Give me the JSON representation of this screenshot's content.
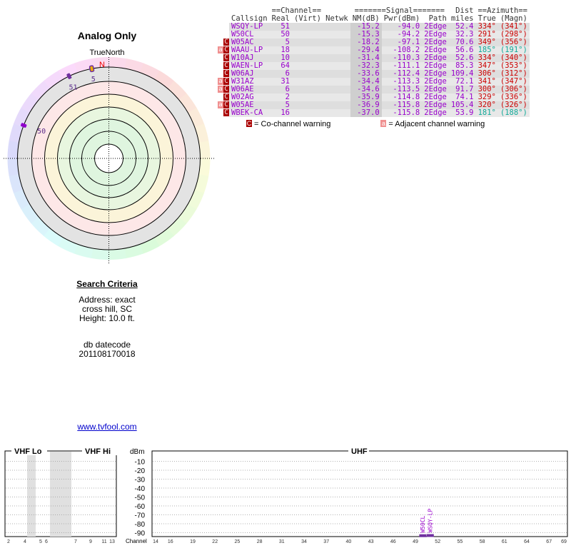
{
  "radar": {
    "title": "Analog Only",
    "north_label": "TrueNorth",
    "n_letter": "N",
    "markers": [
      {
        "label": "5",
        "true_deg": 349,
        "color": "#f0b000"
      },
      {
        "label": "51",
        "true_deg": 334,
        "color": "#7030a0"
      },
      {
        "label": "50",
        "true_deg": 291,
        "color": "#9000cc"
      }
    ]
  },
  "search": {
    "title": "Search Criteria",
    "address": "Address: exact",
    "city": "cross hill, SC",
    "height": "Height: 10.0 ft.",
    "db_label": "db datecode",
    "db_code": "201108170018"
  },
  "link": "www.tvfool.com",
  "table": {
    "group_channel": "==Channel==",
    "group_signal": "=======Signal=======",
    "group_dist": "Dist",
    "group_azimuth": "==Azimuth==",
    "headers": [
      "Callsign",
      "Real",
      "(Virt)",
      "Netwk",
      "NM(dB)",
      "Pwr(dBm)",
      "Path",
      "miles",
      "True",
      "(Magn)"
    ],
    "rows": [
      {
        "flag": "",
        "callsign": "WSQY-LP",
        "real": "51",
        "virt": "",
        "netwk": "",
        "nm": "-15.2",
        "pwr": "-94.0",
        "path": "2Edge",
        "miles": "52.4",
        "true": "334°",
        "magn": "(341°)",
        "az_color": "#c00"
      },
      {
        "flag": "",
        "callsign": "W50CL",
        "real": "50",
        "virt": "",
        "netwk": "",
        "nm": "-15.3",
        "pwr": "-94.2",
        "path": "2Edge",
        "miles": "32.3",
        "true": "291°",
        "magn": "(298°)",
        "az_color": "#c00"
      },
      {
        "flag": "C",
        "callsign": "W05AC",
        "real": "5",
        "virt": "",
        "netwk": "",
        "nm": "-18.2",
        "pwr": "-97.1",
        "path": "2Edge",
        "miles": "70.6",
        "true": "349°",
        "magn": "(356°)",
        "az_color": "#c00"
      },
      {
        "flag": "AC",
        "callsign": "WAAU-LP",
        "real": "18",
        "virt": "",
        "netwk": "",
        "nm": "-29.4",
        "pwr": "-108.2",
        "path": "2Edge",
        "miles": "56.6",
        "true": "185°",
        "magn": "(191°)",
        "az_color": "#1a9"
      },
      {
        "flag": "C",
        "callsign": "W10AJ",
        "real": "10",
        "virt": "",
        "netwk": "",
        "nm": "-31.4",
        "pwr": "-110.3",
        "path": "2Edge",
        "miles": "52.6",
        "true": "334°",
        "magn": "(340°)",
        "az_color": "#c00"
      },
      {
        "flag": "C",
        "callsign": "WAEN-LP",
        "real": "64",
        "virt": "",
        "netwk": "",
        "nm": "-32.3",
        "pwr": "-111.1",
        "path": "2Edge",
        "miles": "85.3",
        "true": "347°",
        "magn": "(353°)",
        "az_color": "#c00"
      },
      {
        "flag": "C",
        "callsign": "W06AJ",
        "real": "6",
        "virt": "",
        "netwk": "",
        "nm": "-33.6",
        "pwr": "-112.4",
        "path": "2Edge",
        "miles": "109.4",
        "true": "306°",
        "magn": "(312°)",
        "az_color": "#c00"
      },
      {
        "flag": "AC",
        "callsign": "W31AZ",
        "real": "31",
        "virt": "",
        "netwk": "",
        "nm": "-34.4",
        "pwr": "-113.3",
        "path": "2Edge",
        "miles": "72.1",
        "true": "341°",
        "magn": "(347°)",
        "az_color": "#c00"
      },
      {
        "flag": "AC",
        "callsign": "W06AE",
        "real": "6",
        "virt": "",
        "netwk": "",
        "nm": "-34.6",
        "pwr": "-113.5",
        "path": "2Edge",
        "miles": "91.7",
        "true": "300°",
        "magn": "(306°)",
        "az_color": "#c00"
      },
      {
        "flag": "C",
        "callsign": "W02AG",
        "real": "2",
        "virt": "",
        "netwk": "",
        "nm": "-35.9",
        "pwr": "-114.8",
        "path": "2Edge",
        "miles": "74.1",
        "true": "329°",
        "magn": "(336°)",
        "az_color": "#c00"
      },
      {
        "flag": "AC",
        "callsign": "W05AE",
        "real": "5",
        "virt": "",
        "netwk": "",
        "nm": "-36.9",
        "pwr": "-115.8",
        "path": "2Edge",
        "miles": "105.4",
        "true": "320°",
        "magn": "(326°)",
        "az_color": "#c00"
      },
      {
        "flag": "C",
        "callsign": "WBEK-CA",
        "real": "16",
        "virt": "",
        "netwk": "",
        "nm": "-37.0",
        "pwr": "-115.8",
        "path": "2Edge",
        "miles": "53.9",
        "true": "181°",
        "magn": "(188°)",
        "az_color": "#1a9"
      }
    ],
    "legend_co_badge": "C",
    "legend_co": " = Co-channel warning",
    "legend_adj_badge": "a",
    "legend_adj": " = Adjacent channel warning"
  },
  "spectrum": {
    "vhf_lo": "VHF Lo",
    "vhf_hi": "VHF Hi",
    "uhf": "UHF",
    "dbm_label": "dBm",
    "channel_label": "Channel",
    "dbm_ticks": [
      "-10",
      "-20",
      "-30",
      "-40",
      "-50",
      "-60",
      "-70",
      "-80",
      "-90"
    ],
    "vhf_lo_channels": [
      "2",
      "4",
      "5",
      "6"
    ],
    "vhf_hi_channels": [
      "7",
      "9",
      "11",
      "13"
    ],
    "uhf_channels": [
      "14",
      "16",
      "19",
      "22",
      "25",
      "28",
      "31",
      "34",
      "37",
      "40",
      "43",
      "46",
      "49",
      "52",
      "55",
      "58",
      "61",
      "64",
      "67",
      "69"
    ],
    "bars": [
      {
        "label": "W50CL",
        "channel": 50,
        "dbm": -94.2
      },
      {
        "label": "WSQY-LP",
        "channel": 51,
        "dbm": -94.0
      }
    ]
  }
}
